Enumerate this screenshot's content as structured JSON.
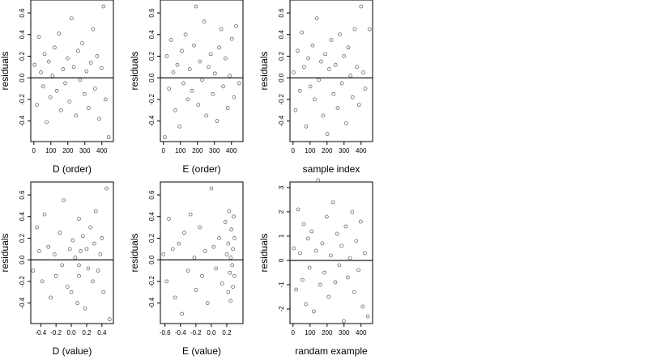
{
  "chart_data": [
    {
      "type": "scatter",
      "xlabel": "D (order)",
      "ylabel": "residuals",
      "marker_color": "#555555",
      "reference_line": 0,
      "xlim": [
        -18,
        468
      ],
      "ylim": [
        -0.59,
        0.72
      ],
      "xticks": [
        0,
        100,
        200,
        300,
        400
      ],
      "yticks": [
        -0.4,
        -0.2,
        {
          "value": 0,
          "label": "0.0"
        },
        0.2,
        0.4,
        0.6
      ],
      "x": [
        5,
        18,
        30,
        42,
        55,
        63,
        75,
        88,
        97,
        110,
        122,
        135,
        148,
        160,
        172,
        185,
        198,
        210,
        222,
        235,
        248,
        260,
        272,
        285,
        298,
        310,
        322,
        335,
        348,
        360,
        372,
        385,
        398,
        410,
        422,
        440
      ],
      "values": [
        0.12,
        -0.25,
        0.38,
        0.05,
        -0.08,
        0.22,
        -0.41,
        0.15,
        -0.18,
        0.02,
        0.28,
        -0.12,
        0.41,
        -0.3,
        0.08,
        -0.05,
        0.18,
        -0.22,
        0.55,
        0.1,
        -0.35,
        0.25,
        -0.02,
        0.32,
        -0.15,
        0.06,
        -0.28,
        0.14,
        0.45,
        -0.1,
        0.2,
        -0.38,
        0.09,
        0.66,
        -0.2,
        -0.55
      ]
    },
    {
      "type": "scatter",
      "xlabel": "E (order)",
      "ylabel": "residuals",
      "marker_color": "#555555",
      "reference_line": 0,
      "xlim": [
        -18,
        468
      ],
      "ylim": [
        -0.59,
        0.72
      ],
      "xticks": [
        0,
        100,
        200,
        300,
        400
      ],
      "yticks": [
        -0.4,
        -0.2,
        {
          "value": 0,
          "label": "0.0"
        },
        0.2,
        0.4,
        0.6
      ],
      "x": [
        8,
        20,
        33,
        45,
        58,
        70,
        82,
        95,
        108,
        118,
        130,
        143,
        155,
        168,
        180,
        192,
        205,
        215,
        228,
        240,
        252,
        265,
        278,
        290,
        303,
        315,
        328,
        340,
        352,
        365,
        378,
        390,
        402,
        415,
        428,
        445
      ],
      "values": [
        -0.55,
        0.2,
        -0.1,
        0.35,
        0.05,
        -0.3,
        0.12,
        -0.45,
        0.25,
        -0.05,
        0.4,
        -0.2,
        0.08,
        -0.12,
        0.3,
        0.66,
        -0.25,
        0.15,
        -0.02,
        0.52,
        -0.35,
        0.1,
        0.22,
        -0.15,
        0.04,
        -0.4,
        0.28,
        0.45,
        -0.08,
        0.18,
        -0.28,
        0.02,
        0.36,
        -0.18,
        0.48,
        -0.05
      ]
    },
    {
      "type": "scatter",
      "xlabel": "sample index",
      "ylabel": "residuals",
      "marker_color": "#555555",
      "reference_line": 0,
      "xlim": [
        -18,
        468
      ],
      "ylim": [
        -0.59,
        0.72
      ],
      "xticks": [
        0,
        100,
        200,
        300,
        400
      ],
      "yticks": [
        -0.4,
        -0.2,
        {
          "value": 0,
          "label": "0.0"
        },
        0.2,
        0.4,
        0.6
      ],
      "x": [
        3,
        15,
        27,
        40,
        52,
        65,
        77,
        90,
        102,
        115,
        127,
        140,
        152,
        165,
        177,
        190,
        202,
        213,
        225,
        238,
        250,
        263,
        275,
        288,
        300,
        313,
        325,
        338,
        350,
        363,
        375,
        388,
        400,
        413,
        425,
        450
      ],
      "values": [
        0.05,
        -0.3,
        0.25,
        -0.12,
        0.42,
        0.1,
        -0.45,
        0.18,
        -0.08,
        0.3,
        -0.2,
        0.55,
        -0.02,
        0.15,
        -0.35,
        0.22,
        -0.52,
        0.08,
        0.35,
        -0.15,
        0.12,
        -0.28,
        0.4,
        -0.05,
        0.2,
        -0.42,
        0.28,
        0.02,
        -0.18,
        0.45,
        0.1,
        -0.25,
        0.66,
        0.05,
        -0.1,
        0.45
      ]
    },
    {
      "type": "scatter",
      "xlabel": "D (value)",
      "ylabel": "residuals",
      "marker_color": "#555555",
      "reference_line": 0,
      "xlim": [
        -0.53,
        0.55
      ],
      "ylim": [
        -0.59,
        0.72
      ],
      "xticks": [
        -0.4,
        -0.2,
        {
          "value": 0,
          "label": "0.0"
        },
        0.2,
        0.4
      ],
      "yticks": [
        -0.4,
        -0.2,
        {
          "value": 0,
          "label": "0.0"
        },
        0.2,
        0.4,
        0.6
      ],
      "x": [
        -0.5,
        -0.45,
        -0.42,
        -0.38,
        -0.35,
        -0.3,
        -0.27,
        -0.22,
        -0.2,
        -0.15,
        -0.12,
        -0.1,
        -0.05,
        -0.02,
        0,
        0.02,
        0.05,
        0.08,
        0.1,
        0.1,
        0.1,
        0.12,
        0.15,
        0.18,
        0.2,
        0.22,
        0.25,
        0.28,
        0.3,
        0.32,
        0.35,
        0.38,
        0.4,
        0.42,
        0.46,
        0.5
      ],
      "values": [
        -0.1,
        0.3,
        0.08,
        -0.2,
        0.42,
        0.12,
        -0.35,
        0.05,
        -0.15,
        0.25,
        -0.05,
        0.55,
        -0.25,
        0.1,
        -0.3,
        0.18,
        0.02,
        -0.4,
        -0.05,
        0.38,
        -0.15,
        0.08,
        0.22,
        -0.45,
        0.1,
        -0.08,
        0.3,
        -0.2,
        0.15,
        0.45,
        -0.1,
        0.05,
        0.2,
        -0.3,
        0.66,
        -0.55
      ]
    },
    {
      "type": "scatter",
      "xlabel": "E (value)",
      "ylabel": "residuals",
      "marker_color": "#555555",
      "reference_line": 0,
      "xlim": [
        -0.66,
        0.41
      ],
      "ylim": [
        -0.59,
        0.72
      ],
      "xticks": [
        -0.6,
        -0.4,
        -0.2,
        {
          "value": 0,
          "label": "0.0"
        },
        0.2
      ],
      "yticks": [
        -0.4,
        -0.2,
        {
          "value": 0,
          "label": "0.0"
        },
        0.2,
        0.4,
        0.6
      ],
      "x": [
        -0.62,
        -0.58,
        -0.55,
        -0.5,
        -0.47,
        -0.42,
        -0.38,
        -0.35,
        -0.3,
        -0.27,
        -0.22,
        -0.2,
        -0.15,
        -0.12,
        -0.08,
        -0.05,
        0,
        0.03,
        0.06,
        0.1,
        0.14,
        0.18,
        0.2,
        0.22,
        0.22,
        0.23,
        0.24,
        0.25,
        0.25,
        0.26,
        0.27,
        0.28,
        0.28,
        0.29,
        0.3,
        0.3
      ],
      "values": [
        0.05,
        -0.2,
        0.38,
        0.1,
        -0.35,
        0.15,
        -0.5,
        0.25,
        -0.1,
        0.42,
        0.02,
        -0.28,
        0.3,
        -0.15,
        0.08,
        -0.4,
        0.66,
        0.12,
        -0.08,
        0.2,
        -0.22,
        0.35,
        0.05,
        -0.3,
        0.15,
        0.45,
        -0.12,
        0.02,
        -0.38,
        0.28,
        -0.05,
        0.1,
        -0.25,
        0.4,
        -0.15,
        0.2
      ]
    },
    {
      "type": "scatter",
      "xlabel": "randam example",
      "ylabel": "residuals",
      "marker_color": "#555555",
      "reference_line": 0,
      "xlim": [
        -18,
        468
      ],
      "ylim": [
        -2.6,
        3.23
      ],
      "xticks": [
        0,
        100,
        200,
        300,
        400
      ],
      "yticks": [
        -2,
        -1,
        0,
        1,
        2,
        3
      ],
      "x": [
        5,
        18,
        30,
        42,
        55,
        63,
        75,
        88,
        97,
        110,
        122,
        135,
        148,
        160,
        172,
        185,
        198,
        210,
        222,
        235,
        248,
        260,
        272,
        285,
        298,
        310,
        322,
        335,
        348,
        360,
        372,
        385,
        398,
        410,
        422,
        440
      ],
      "values": [
        0.5,
        -1.2,
        2.1,
        0.3,
        -0.8,
        1.5,
        -1.8,
        0.9,
        -0.3,
        1.2,
        -2.1,
        0.4,
        3.3,
        -1.0,
        0.7,
        -0.5,
        1.8,
        -1.5,
        0.2,
        2.4,
        -0.9,
        1.1,
        -0.2,
        0.6,
        -2.5,
        1.4,
        -0.7,
        0.1,
        2.0,
        -1.3,
        0.8,
        -0.4,
        1.6,
        -1.9,
        0.3,
        -2.3
      ]
    }
  ]
}
